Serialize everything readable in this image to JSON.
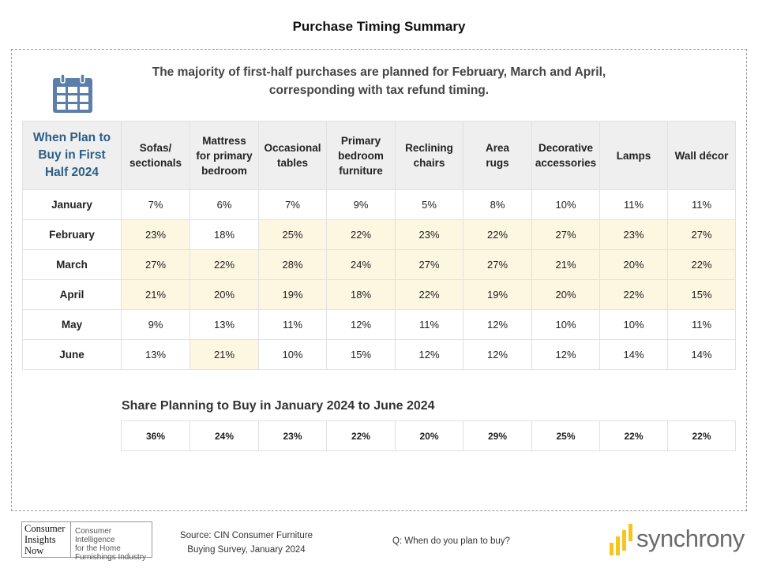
{
  "title": "Purchase Timing Summary",
  "headline": {
    "line1": "The majority of first-half purchases are planned for February, March and April,",
    "line2": "corresponding with tax refund timing."
  },
  "icons": {
    "calendar": "calendar-icon"
  },
  "colors": {
    "accent": "#2c5e86",
    "highlight": "#fdf6e0",
    "header_bg": "#efefef"
  },
  "table": {
    "corner": [
      "When Plan to",
      "Buy in First",
      "Half 2024"
    ],
    "columns": [
      [
        "Sofas/",
        "sectionals"
      ],
      [
        "Mattress",
        "for primary",
        "bedroom"
      ],
      [
        "Occasional",
        "tables"
      ],
      [
        "Primary",
        "bedroom",
        "furniture"
      ],
      [
        "Reclining",
        "chairs"
      ],
      [
        "Area",
        "rugs"
      ],
      [
        "Decorative",
        "accessories"
      ],
      [
        "Lamps"
      ],
      [
        "Wall décor"
      ]
    ],
    "rows": [
      {
        "label": "January",
        "values": [
          "7%",
          "6%",
          "7%",
          "9%",
          "5%",
          "8%",
          "10%",
          "11%",
          "11%"
        ],
        "highlight": [
          false,
          false,
          false,
          false,
          false,
          false,
          false,
          false,
          false
        ]
      },
      {
        "label": "February",
        "values": [
          "23%",
          "18%",
          "25%",
          "22%",
          "23%",
          "22%",
          "27%",
          "23%",
          "27%"
        ],
        "highlight": [
          true,
          false,
          true,
          true,
          true,
          true,
          true,
          true,
          true
        ]
      },
      {
        "label": "March",
        "values": [
          "27%",
          "22%",
          "28%",
          "24%",
          "27%",
          "27%",
          "21%",
          "20%",
          "22%"
        ],
        "highlight": [
          true,
          true,
          true,
          true,
          true,
          true,
          true,
          true,
          true
        ]
      },
      {
        "label": "April",
        "values": [
          "21%",
          "20%",
          "19%",
          "18%",
          "22%",
          "19%",
          "20%",
          "22%",
          "15%"
        ],
        "highlight": [
          true,
          true,
          true,
          true,
          true,
          true,
          true,
          true,
          true
        ]
      },
      {
        "label": "May",
        "values": [
          "9%",
          "13%",
          "11%",
          "12%",
          "11%",
          "12%",
          "10%",
          "10%",
          "11%"
        ],
        "highlight": [
          false,
          false,
          false,
          false,
          false,
          false,
          false,
          false,
          false
        ]
      },
      {
        "label": "June",
        "values": [
          "13%",
          "21%",
          "10%",
          "15%",
          "12%",
          "12%",
          "12%",
          "14%",
          "14%"
        ],
        "highlight": [
          false,
          true,
          false,
          false,
          false,
          false,
          false,
          false,
          false
        ]
      }
    ]
  },
  "share": {
    "title": "Share Planning to Buy in January 2024 to June 2024",
    "values": [
      "36%",
      "24%",
      "23%",
      "22%",
      "20%",
      "29%",
      "25%",
      "22%",
      "22%"
    ]
  },
  "footer": {
    "logo_cin": {
      "left": [
        "Consumer",
        "Insights",
        "Now"
      ],
      "right": [
        "Consumer Intelligence",
        "for the Home",
        "Furnishings Industry"
      ]
    },
    "source": [
      "Source: CIN Consumer Furniture",
      "Buying Survey, January 2024"
    ],
    "question": "Q: When do you plan to buy?",
    "brand": "synchrony"
  }
}
